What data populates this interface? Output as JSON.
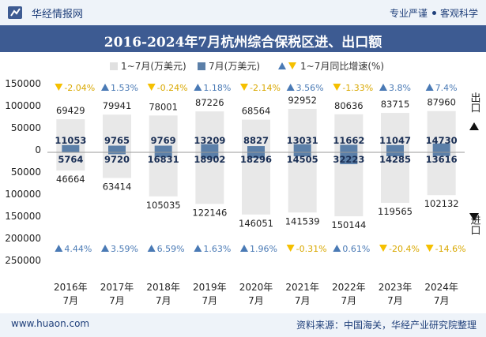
{
  "header": {
    "brand": "华经情报网",
    "tag1": "专业严谨",
    "tag2": "客观科学"
  },
  "title": "2016-2024年7月杭州综合保税区进、出口额",
  "legend": {
    "cum_label": "1~7月(万美元)",
    "month_label": "7月(万美元)",
    "growth_label": "1~7月同比增速(%)"
  },
  "axis_side": {
    "export_label": "出口",
    "import_label": "进口"
  },
  "footer": {
    "site": "www.huaon.com",
    "source": "资料来源：中国海关，华经产业研究院整理"
  },
  "colors": {
    "cum_bar": "#e8e8e8",
    "month_bar": "#5b7fa8",
    "up": "#4a7ab5",
    "down": "#f5c000",
    "title_bg": "#3d5b92"
  },
  "chart_data": {
    "type": "bar",
    "title": "2016-2024年7月杭州综合保税区进、出口额",
    "categories": [
      "2016年\n7月",
      "2017年\n7月",
      "2018年\n7月",
      "2019年\n7月",
      "2020年\n7月",
      "2021年\n7月",
      "2022年\n7月",
      "2023年\n7月",
      "2024年\n7月"
    ],
    "ylim": [
      -250000,
      150000
    ],
    "yticks": [
      150000,
      100000,
      50000,
      0,
      -50000,
      -100000,
      -150000,
      -200000,
      -250000
    ],
    "ytick_labels": [
      "150000",
      "100000",
      "50000",
      "0",
      "50000",
      "100000",
      "150000",
      "200000",
      "250000"
    ],
    "series": [
      {
        "name": "出口 1~7月(万美元)",
        "values": [
          69429,
          79941,
          78001,
          87226,
          68564,
          92952,
          80636,
          83715,
          87960
        ]
      },
      {
        "name": "出口 7月(万美元)",
        "values": [
          11053,
          9765,
          9769,
          13209,
          8827,
          13031,
          11662,
          11047,
          14730
        ]
      },
      {
        "name": "进口 1~7月(万美元)",
        "values": [
          46664,
          63414,
          105035,
          122146,
          146051,
          141539,
          150144,
          119565,
          102132
        ]
      },
      {
        "name": "进口 7月(万美元)",
        "values": [
          5764,
          9720,
          16831,
          18902,
          18296,
          14505,
          32223,
          14285,
          13616
        ]
      },
      {
        "name": "出口 1~7月同比增速(%)",
        "values": [
          -2.04,
          1.53,
          -0.24,
          1.18,
          -2.14,
          3.56,
          -1.33,
          3.8,
          7.4
        ]
      },
      {
        "name": "进口 1~7月同比增速(%)",
        "values": [
          4.44,
          3.59,
          6.59,
          1.63,
          1.96,
          -0.31,
          0.61,
          -20.4,
          -14.6
        ]
      }
    ],
    "export_growth_labels": [
      "-2.04%",
      "1.53%",
      "-0.24%",
      "1.18%",
      "-2.14%",
      "3.56%",
      "-1.33%",
      "3.8%",
      "7.4%"
    ],
    "import_growth_labels": [
      "4.44%",
      "3.59%",
      "6.59%",
      "1.63%",
      "1.96%",
      "-0.31%",
      "0.61%",
      "-20.4%",
      "-14.6%"
    ],
    "legend_position": "top",
    "grid": false
  }
}
